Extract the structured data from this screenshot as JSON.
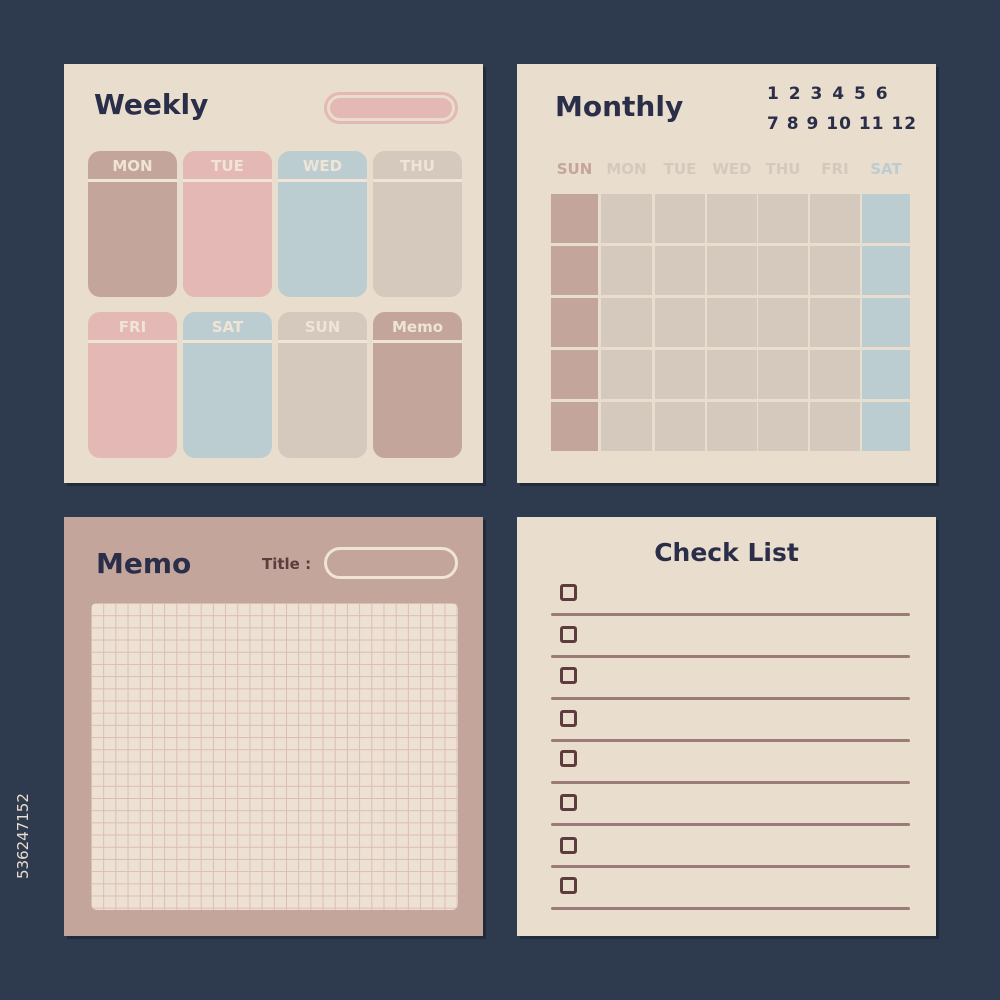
{
  "colors": {
    "background": "#2e3a4d",
    "paper": "#e9ddcd",
    "mauve": "#c4a59c",
    "pink": "#e3b8b5",
    "blue": "#bccdd1",
    "beige": "#d5c8bc",
    "ink": "#2a2e48"
  },
  "weekly": {
    "title": "Weekly",
    "days": [
      {
        "label": "MON",
        "color": "#c4a59c"
      },
      {
        "label": "TUE",
        "color": "#e3b8b5"
      },
      {
        "label": "WED",
        "color": "#bccdd1"
      },
      {
        "label": "THU",
        "color": "#d5c8bc"
      },
      {
        "label": "FRI",
        "color": "#e3b8b5"
      },
      {
        "label": "SAT",
        "color": "#bccdd1"
      },
      {
        "label": "SUN",
        "color": "#d5c8bc"
      },
      {
        "label": "Memo",
        "color": "#c4a59c"
      }
    ]
  },
  "monthly": {
    "title": "Monthly",
    "months_row1": "1 2 3 4 5 6",
    "months_row2": "7 8 9 10 11 12",
    "weekdays": [
      {
        "label": "SUN",
        "color": "#c4a59c"
      },
      {
        "label": "MON",
        "color": "#d5c8bc"
      },
      {
        "label": "TUE",
        "color": "#d5c8bc"
      },
      {
        "label": "WED",
        "color": "#d5c8bc"
      },
      {
        "label": "THU",
        "color": "#d5c8bc"
      },
      {
        "label": "FRI",
        "color": "#d5c8bc"
      },
      {
        "label": "SAT",
        "color": "#bccdd1"
      }
    ]
  },
  "memo": {
    "title": "Memo",
    "title_label": "Title :"
  },
  "checklist": {
    "title": "Check List",
    "items": 8
  },
  "stock_id": "536247152"
}
